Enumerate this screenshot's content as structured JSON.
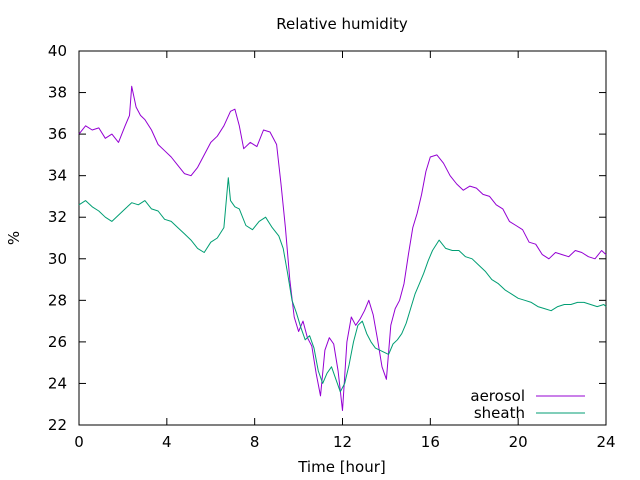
{
  "chart_data": {
    "type": "line",
    "title": "Relative humidity",
    "xlabel": "Time [hour]",
    "ylabel": "%",
    "xlim": [
      0,
      24
    ],
    "ylim": [
      22,
      40
    ],
    "xticks": [
      0,
      4,
      8,
      12,
      16,
      20,
      24
    ],
    "yticks": [
      22,
      24,
      26,
      28,
      30,
      32,
      34,
      36,
      38,
      40
    ],
    "grid": false,
    "legend_position": "bottom-right",
    "series": [
      {
        "name": "aerosol",
        "color": "#9400d3",
        "x": [
          0,
          0.3,
          0.6,
          0.9,
          1.2,
          1.5,
          1.8,
          2.1,
          2.3,
          2.4,
          2.6,
          2.8,
          3.0,
          3.3,
          3.6,
          3.9,
          4.2,
          4.5,
          4.8,
          5.1,
          5.4,
          5.7,
          6.0,
          6.3,
          6.6,
          6.9,
          7.1,
          7.3,
          7.5,
          7.8,
          8.1,
          8.4,
          8.7,
          9.0,
          9.2,
          9.4,
          9.6,
          9.8,
          10.0,
          10.2,
          10.4,
          10.6,
          10.8,
          11.0,
          11.2,
          11.4,
          11.6,
          11.8,
          12.0,
          12.2,
          12.4,
          12.6,
          12.8,
          13.0,
          13.2,
          13.4,
          13.6,
          13.8,
          14.0,
          14.2,
          14.4,
          14.6,
          14.8,
          15.0,
          15.2,
          15.4,
          15.6,
          15.8,
          16.0,
          16.3,
          16.6,
          16.9,
          17.2,
          17.5,
          17.8,
          18.1,
          18.4,
          18.7,
          19.0,
          19.3,
          19.6,
          19.9,
          20.2,
          20.5,
          20.8,
          21.1,
          21.4,
          21.7,
          22.0,
          22.3,
          22.6,
          22.9,
          23.2,
          23.5,
          23.8,
          24.0
        ],
        "values": [
          36.0,
          36.4,
          36.2,
          36.3,
          35.8,
          36.0,
          35.6,
          36.4,
          36.9,
          38.3,
          37.3,
          36.9,
          36.7,
          36.2,
          35.5,
          35.2,
          34.9,
          34.5,
          34.1,
          34.0,
          34.4,
          35.0,
          35.6,
          35.9,
          36.4,
          37.1,
          37.2,
          36.4,
          35.3,
          35.6,
          35.4,
          36.2,
          36.1,
          35.5,
          33.6,
          31.5,
          29.0,
          27.2,
          26.5,
          27.0,
          26.2,
          25.8,
          24.5,
          23.4,
          25.6,
          26.2,
          25.9,
          24.6,
          22.7,
          26.0,
          27.2,
          26.8,
          27.1,
          27.5,
          28.0,
          27.3,
          26.1,
          24.8,
          24.2,
          26.8,
          27.6,
          28.0,
          28.8,
          30.2,
          31.5,
          32.2,
          33.1,
          34.2,
          34.9,
          35.0,
          34.6,
          34.0,
          33.6,
          33.3,
          33.5,
          33.4,
          33.1,
          33.0,
          32.6,
          32.4,
          31.8,
          31.6,
          31.4,
          30.8,
          30.7,
          30.2,
          30.0,
          30.3,
          30.2,
          30.1,
          30.4,
          30.3,
          30.1,
          30.0,
          30.4,
          30.2
        ]
      },
      {
        "name": "sheath",
        "color": "#009e73",
        "x": [
          0,
          0.3,
          0.6,
          0.9,
          1.2,
          1.5,
          1.8,
          2.1,
          2.4,
          2.7,
          3.0,
          3.3,
          3.6,
          3.9,
          4.2,
          4.5,
          4.8,
          5.1,
          5.4,
          5.7,
          6.0,
          6.3,
          6.6,
          6.8,
          6.9,
          7.1,
          7.3,
          7.6,
          7.9,
          8.2,
          8.5,
          8.8,
          9.1,
          9.3,
          9.5,
          9.7,
          9.9,
          10.1,
          10.3,
          10.5,
          10.7,
          10.9,
          11.1,
          11.3,
          11.5,
          11.7,
          11.9,
          12.1,
          12.3,
          12.5,
          12.7,
          12.9,
          13.1,
          13.3,
          13.5,
          13.7,
          13.9,
          14.1,
          14.3,
          14.5,
          14.7,
          14.9,
          15.1,
          15.3,
          15.5,
          15.7,
          15.9,
          16.1,
          16.4,
          16.7,
          17.0,
          17.3,
          17.6,
          17.9,
          18.2,
          18.5,
          18.8,
          19.1,
          19.4,
          19.7,
          20.0,
          20.3,
          20.6,
          20.9,
          21.2,
          21.5,
          21.8,
          22.1,
          22.4,
          22.7,
          23.0,
          23.3,
          23.6,
          23.9,
          24.0
        ],
        "values": [
          32.6,
          32.8,
          32.5,
          32.3,
          32.0,
          31.8,
          32.1,
          32.4,
          32.7,
          32.6,
          32.8,
          32.4,
          32.3,
          31.9,
          31.8,
          31.5,
          31.2,
          30.9,
          30.5,
          30.3,
          30.8,
          31.0,
          31.5,
          33.9,
          32.8,
          32.5,
          32.4,
          31.6,
          31.4,
          31.8,
          32.0,
          31.5,
          31.1,
          30.5,
          29.3,
          28.0,
          27.4,
          26.7,
          26.1,
          26.3,
          25.7,
          24.6,
          24.0,
          24.5,
          24.8,
          24.2,
          23.6,
          24.0,
          24.9,
          26.0,
          26.8,
          27.0,
          26.4,
          26.0,
          25.7,
          25.6,
          25.5,
          25.4,
          25.9,
          26.1,
          26.4,
          26.9,
          27.6,
          28.3,
          28.8,
          29.3,
          29.9,
          30.4,
          30.9,
          30.5,
          30.4,
          30.4,
          30.1,
          30.0,
          29.7,
          29.4,
          29.0,
          28.8,
          28.5,
          28.3,
          28.1,
          28.0,
          27.9,
          27.7,
          27.6,
          27.5,
          27.7,
          27.8,
          27.8,
          27.9,
          27.9,
          27.8,
          27.7,
          27.8,
          27.7
        ]
      }
    ]
  }
}
